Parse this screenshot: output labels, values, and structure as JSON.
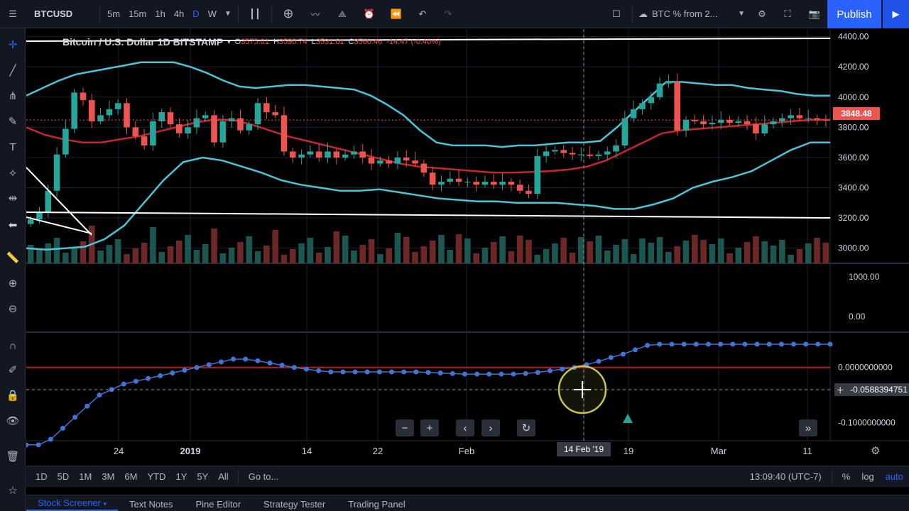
{
  "topbar": {
    "symbol": "BTCUSD",
    "intervals": [
      "5m",
      "15m",
      "1h",
      "4h",
      "D",
      "W"
    ],
    "active_interval": "D",
    "compare_label": "BTC % from 2...",
    "publish_label": "Publish"
  },
  "legend": {
    "title": "Bitcoin / U.S. Dollar  1D  BITSTAMP",
    "o_label": "O",
    "o_value": "3575.01",
    "h_label": "H",
    "h_value": "3590.74",
    "l_label": "L",
    "l_value": "3531.01",
    "c_label": "C",
    "c_value": "3560.46",
    "change": "-14.47 (-0.40%)"
  },
  "price_axis": {
    "main_ticks": [
      "4400.00",
      "4200.00",
      "4000.00",
      "3800.00",
      "3600.00",
      "3400.00",
      "3200.00",
      "3000.00"
    ],
    "current_price": "3848.48",
    "osc1_ticks": [
      "1000.00",
      "0.00"
    ],
    "osc2_ticks": [
      "0.0000000000",
      "-0.1000000000"
    ],
    "crosshair_value": "-0.0588394751"
  },
  "time_axis": {
    "ticks": [
      "24",
      "2019",
      "14",
      "22",
      "Feb",
      "19",
      "Mar",
      "11"
    ],
    "crosshair_date": "14 Feb '19"
  },
  "bottombar": {
    "ranges": [
      "1D",
      "5D",
      "1M",
      "3M",
      "6M",
      "YTD",
      "1Y",
      "5Y",
      "All"
    ],
    "goto_label": "Go to...",
    "clock": "13:09:40 (UTC-7)",
    "percent_label": "%",
    "log_label": "log",
    "auto_label": "auto"
  },
  "panels": {
    "tabs": [
      "Stock Screener",
      "Text Notes",
      "Pine Editor",
      "Strategy Tester",
      "Trading Panel"
    ]
  },
  "colors": {
    "up": "#26a69a",
    "down": "#ef5350",
    "bb": "#48c6d8",
    "basis": "#c62828",
    "osc": "#3f74d8"
  },
  "chart_data": {
    "type": "line",
    "close_series": [
      3190,
      3240,
      3380,
      3620,
      3790,
      4030,
      3980,
      3840,
      3880,
      3920,
      3960,
      3800,
      3740,
      3680,
      3840,
      3900,
      3820,
      3760,
      3800,
      3860,
      3880,
      3700,
      3840,
      3860,
      3780,
      3820,
      3960,
      3900,
      3880,
      3640,
      3600,
      3620,
      3640,
      3600,
      3640,
      3600,
      3620,
      3640,
      3600,
      3560,
      3580,
      3560,
      3600,
      3580,
      3560,
      3500,
      3420,
      3440,
      3460,
      3440,
      3440,
      3420,
      3440,
      3420,
      3440,
      3420,
      3380,
      3360,
      3610,
      3640,
      3650,
      3630,
      3620,
      3620,
      3610,
      3620,
      3640,
      3680,
      3860,
      3920,
      3960,
      4000,
      4090,
      4100,
      3780,
      3850,
      3840,
      3820,
      3830,
      3850,
      3830,
      3840,
      3820,
      3760,
      3820,
      3840,
      3860,
      3880,
      3860,
      3860,
      3850,
      3848
    ],
    "bb_upper_series": [
      4010,
      4060,
      4110,
      4150,
      4170,
      4190,
      4210,
      4230,
      4230,
      4230,
      4200,
      4160,
      4110,
      4070,
      4060,
      4070,
      4080,
      4080,
      4070,
      4060,
      4050,
      4010,
      3950,
      3880,
      3780,
      3700,
      3680,
      3680,
      3680,
      3670,
      3680,
      3680,
      3690,
      3700,
      3700,
      3710,
      3800,
      3900,
      4000,
      4100,
      4100,
      4090,
      4080,
      4080,
      4060,
      4050,
      4040,
      4020,
      4010,
      4010
    ],
    "bb_basis_series": [
      3800,
      3750,
      3720,
      3700,
      3700,
      3720,
      3740,
      3770,
      3800,
      3830,
      3850,
      3850,
      3820,
      3780,
      3740,
      3710,
      3680,
      3650,
      3620,
      3590,
      3560,
      3540,
      3530,
      3520,
      3510,
      3500,
      3500,
      3505,
      3510,
      3520,
      3540,
      3580,
      3640,
      3700,
      3760,
      3780,
      3790,
      3800,
      3810,
      3820,
      3830,
      3840,
      3850,
      3850
    ],
    "bb_lower_series": [
      3000,
      2990,
      3000,
      3010,
      3060,
      3150,
      3300,
      3450,
      3570,
      3600,
      3580,
      3540,
      3500,
      3450,
      3420,
      3400,
      3380,
      3380,
      3390,
      3370,
      3350,
      3330,
      3320,
      3310,
      3310,
      3300,
      3300,
      3300,
      3290,
      3280,
      3260,
      3260,
      3290,
      3330,
      3400,
      3440,
      3470,
      3510,
      3580,
      3650,
      3700,
      3700
    ],
    "osc_series": [
      -0.14,
      -0.14,
      -0.13,
      -0.11,
      -0.09,
      -0.07,
      -0.05,
      -0.04,
      -0.03,
      -0.025,
      -0.02,
      -0.015,
      -0.01,
      -0.005,
      0.0,
      0.005,
      0.01,
      0.015,
      0.015,
      0.012,
      0.008,
      0.004,
      0.0,
      -0.003,
      -0.006,
      -0.008,
      -0.008,
      -0.008,
      -0.008,
      -0.008,
      -0.008,
      -0.008,
      -0.008,
      -0.009,
      -0.01,
      -0.011,
      -0.012,
      -0.012,
      -0.012,
      -0.012,
      -0.012,
      -0.011,
      -0.009,
      -0.006,
      -0.003,
      0.0,
      0.005,
      0.011,
      0.018,
      0.024,
      0.032,
      0.04,
      0.042,
      0.042,
      0.042,
      0.042,
      0.042,
      0.042,
      0.042,
      0.042,
      0.042,
      0.042,
      0.042,
      0.042,
      0.042,
      0.042,
      0.042
    ],
    "ylim": [
      2900,
      4450
    ],
    "osc_ylim": [
      -0.13,
      0.06
    ]
  }
}
